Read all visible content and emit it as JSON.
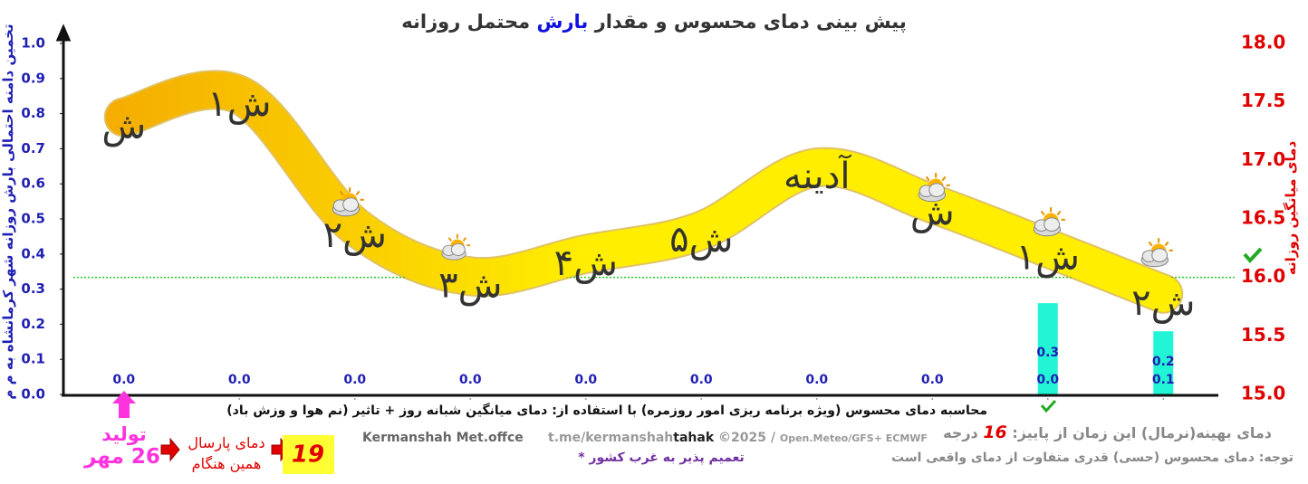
{
  "title": {
    "before": "پیش بینی دمای محسوس و مقدار",
    "highlight": "بارش",
    "after": "محتمل روزانه"
  },
  "chart_data": {
    "type": "line",
    "ylabel": "تخمین دامنه احتمالی بارش روزانه شهر کرمانشاه به م م",
    "y2label": "دمای میانگین روزانه",
    "categories": [
      "ش",
      "۱ش",
      "۲ش",
      "۳ش",
      "۴ش",
      "۵ش",
      "آدینه",
      "ش",
      "۱ش",
      "۲ش"
    ],
    "series": [
      {
        "color": "#ffe600",
        "axis": "y2",
        "values": [
          17.37,
          17.56,
          16.44,
          16.01,
          16.2,
          16.4,
          16.94,
          16.63,
          16.25,
          15.86
        ]
      }
    ],
    "bars": {
      "color": "#22f5d5",
      "values": [
        0,
        0,
        0,
        0,
        0,
        0,
        0,
        0,
        0.26,
        0.18
      ]
    },
    "precip_low": {
      "values": [
        0,
        0,
        0,
        0,
        0,
        0,
        0,
        0,
        0,
        0.1
      ],
      "value_labels": [
        "0.0",
        "0.0",
        "0.0",
        "0.0",
        "0.0",
        "0.0",
        "0.0",
        "0.0",
        "0.0",
        "0.1"
      ]
    },
    "precip_high": {
      "values": [
        null,
        null,
        null,
        null,
        null,
        null,
        null,
        null,
        0.3,
        0.2
      ],
      "value_labels": [
        null,
        null,
        null,
        null,
        null,
        null,
        null,
        null,
        "0.3",
        "0.2"
      ]
    },
    "ylim": [
      0,
      1
    ],
    "yticks": [
      {
        "value": 0,
        "label": "0.0"
      },
      {
        "value": 0.1,
        "label": "0.1"
      },
      {
        "value": 0.2,
        "label": "0.2"
      },
      {
        "value": 0.3,
        "label": "0.3"
      },
      {
        "value": 0.4,
        "label": "0.4"
      },
      {
        "value": 0.5,
        "label": "0.5"
      },
      {
        "value": 0.6,
        "label": "0.6"
      },
      {
        "value": 0.7,
        "label": "0.7"
      },
      {
        "value": 0.8,
        "label": "0.8"
      },
      {
        "value": 0.9,
        "label": "0.9"
      },
      {
        "value": 1,
        "label": "1.0"
      }
    ],
    "y2lim": [
      15,
      18
    ],
    "y2ticks": [
      {
        "value": 15,
        "label": "15.0"
      },
      {
        "value": 15.5,
        "label": "15.5"
      },
      {
        "value": 16,
        "label": "16.0"
      },
      {
        "value": 16.5,
        "label": "16.5"
      },
      {
        "value": 17,
        "label": "17.0"
      },
      {
        "value": 17.5,
        "label": "17.5"
      },
      {
        "value": 18,
        "label": "18.0"
      }
    ],
    "normal_line": {
      "value": 16,
      "color": "#22cc22"
    }
  },
  "footer": {
    "calc_note": "محاسبه دمای محسوس (ویژه برنامه ریزی امور روزمره) با استفاده از: دمای میانگین شبانه روز + تاثیر (نم هوا و وزش باد)",
    "office": "Kermanshah Met.offce",
    "link_a": "t.me/kermanshah",
    "link_b": "tahak",
    "copyright": "©2025 /",
    "sources": "Open.Meteo/GFS+ ECMWF",
    "scope": "تعمیم پذیر به غرب کشور *",
    "produced_label": "تولید",
    "produced_date": "26 مهر",
    "last_year_label_1": "دمای پارسال",
    "last_year_label_2": "همین هنگام",
    "last_year_value": 19,
    "normal_before": "دمای بهینه(نرمال) این زمان از پاییز:",
    "normal_after": "درجه",
    "note": "توجه: دمای محسوس (حسی) قدری متفاوت از دمای واقعی است"
  }
}
